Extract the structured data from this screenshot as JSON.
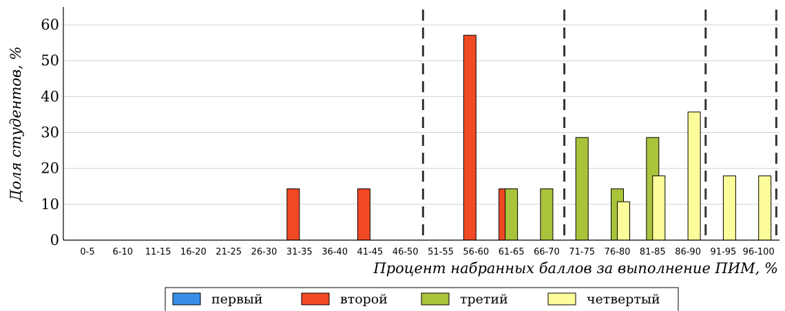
{
  "chart_data": {
    "type": "bar",
    "xlabel": "Процент набранных баллов за выполнение ПИМ, %",
    "ylabel": "Доля студентов, %",
    "ylim": [
      0,
      65
    ],
    "yticks": [
      0,
      10,
      20,
      30,
      40,
      50,
      60
    ],
    "grid": "horizontal",
    "legend_position": "bottom",
    "categories": [
      "0-5",
      "6-10",
      "11-15",
      "16-20",
      "21-25",
      "26-30",
      "31-35",
      "36-40",
      "41-45",
      "46-50",
      "51-55",
      "56-60",
      "61-65",
      "66-70",
      "71-75",
      "76-80",
      "81-85",
      "86-90",
      "91-95",
      "96-100"
    ],
    "dashed_separators_after": [
      "46-50",
      "66-70",
      "86-90",
      "96-100"
    ],
    "series": [
      {
        "name": "первый",
        "color": "#3a8ee6",
        "values": [
          0,
          0,
          0,
          0,
          0,
          0,
          0,
          0,
          0,
          0,
          0,
          0,
          0,
          0,
          0,
          0,
          0,
          0,
          0,
          0
        ]
      },
      {
        "name": "второй",
        "color": "#f04923",
        "values": [
          0,
          0,
          0,
          0,
          0,
          0,
          14.3,
          0,
          14.3,
          0,
          0,
          57.1,
          14.3,
          0,
          0,
          0,
          0,
          0,
          0,
          0
        ]
      },
      {
        "name": "третий",
        "color": "#a9c43b",
        "values": [
          0,
          0,
          0,
          0,
          0,
          0,
          0,
          0,
          0,
          0,
          0,
          0,
          14.3,
          14.3,
          28.6,
          14.3,
          28.6,
          0,
          0,
          0
        ]
      },
      {
        "name": "четвертый",
        "color": "#fcfc9a",
        "values": [
          0,
          0,
          0,
          0,
          0,
          0,
          0,
          0,
          0,
          0,
          0,
          0,
          0,
          0,
          0,
          10.7,
          17.9,
          35.7,
          17.9,
          17.9
        ]
      }
    ]
  }
}
